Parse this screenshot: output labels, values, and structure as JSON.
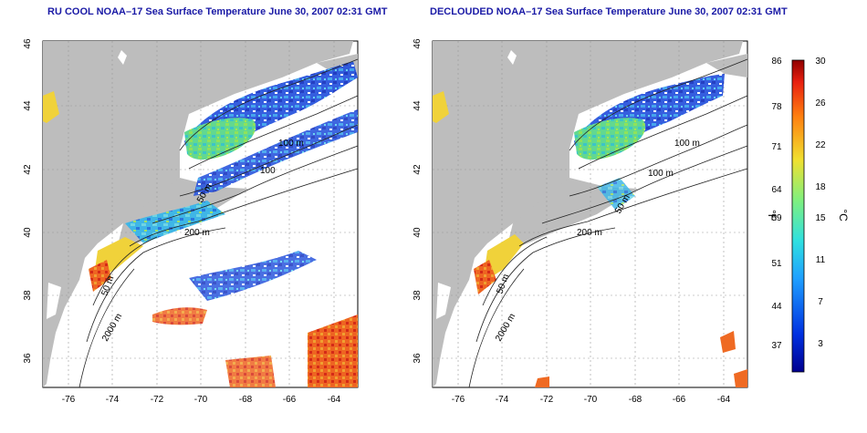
{
  "left_map": {
    "title": "RU COOL NOAA–17 Sea Surface Temperature June 30, 2007 02:31 GMT",
    "x_ticks": [
      "-76",
      "-74",
      "-72",
      "-70",
      "-68",
      "-66",
      "-64"
    ],
    "y_ticks": [
      "46",
      "44",
      "42",
      "40",
      "38",
      "36"
    ],
    "contours": [
      "100 m",
      "100",
      "50 m",
      "200 m",
      "50 m",
      "2000 m"
    ]
  },
  "right_map": {
    "title": "DECLOUDED NOAA–17 Sea Surface Temperature June 30, 2007 02:31 GMT",
    "x_ticks": [
      "-76",
      "-74",
      "-72",
      "-70",
      "-68",
      "-66",
      "-64"
    ],
    "y_ticks": [
      "46",
      "44",
      "42",
      "40",
      "38",
      "36"
    ],
    "contours": [
      "100 m",
      "100 m",
      "50 m",
      "200 m",
      "50 m",
      "2000 m"
    ]
  },
  "colorbar": {
    "f_unit": "°F",
    "c_unit": "°C",
    "f_ticks": [
      "86",
      "78",
      "71",
      "64",
      "59",
      "51",
      "44",
      "37"
    ],
    "c_ticks": [
      "30",
      "26",
      "22",
      "18",
      "15",
      "11",
      "7",
      "3"
    ]
  },
  "colors": {
    "land": "#bdbdbd",
    "cold": "#1f4fd6",
    "cool": "#39b8e8",
    "mid": "#8fe35a",
    "warm": "#f0d23a",
    "hot": "#ef6a23",
    "hottest": "#cc2018"
  }
}
